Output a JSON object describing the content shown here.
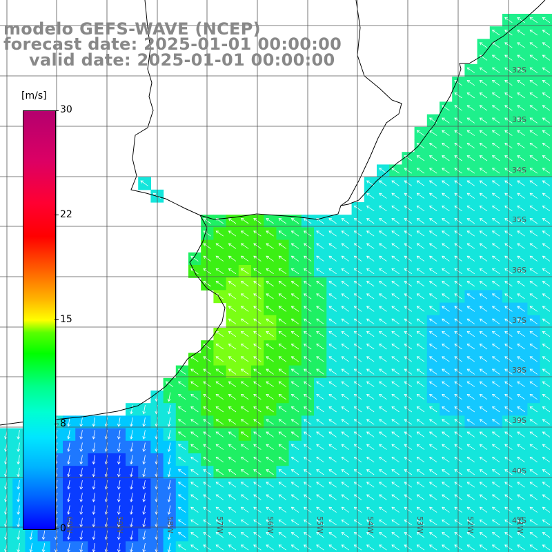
{
  "title": {
    "line1": "modelo GEFS-WAVE (NCEP)",
    "line2": "forecast date: 2025-01-01 00:00:00",
    "line3": "valid date: 2025-01-01 00:00:00"
  },
  "colorbar": {
    "unit": "[m/s]",
    "ticks": [
      "30",
      "22",
      "15",
      "8",
      "0"
    ],
    "min": 0,
    "max": 30
  },
  "latitude_labels": [
    "32S",
    "33S",
    "34S",
    "35S",
    "36S",
    "37S",
    "38S",
    "39S",
    "40S",
    "41S"
  ],
  "longitude_labels": [
    "60W",
    "59W",
    "58W",
    "57W",
    "56W",
    "55W",
    "54W",
    "53W",
    "52W",
    "51W"
  ],
  "colors": {
    "land": "#ffffff",
    "grid": "#555555",
    "coastline": "#000000",
    "title": "#888888",
    "arrow": "#ffffff"
  }
}
